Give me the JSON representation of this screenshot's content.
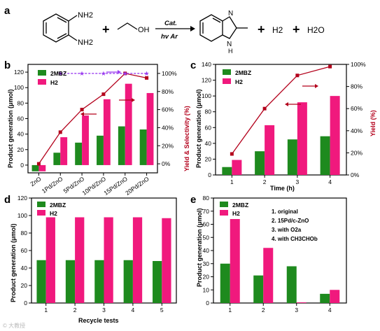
{
  "colors": {
    "green": "#1e8a1e",
    "pink": "#f0197d",
    "red": "#b3001b",
    "purple": "#9b3df0"
  },
  "scheme": {
    "label": "a",
    "reactant1_sub1": "NH2",
    "reactant1_sub2": "NH2",
    "reactant2": "OH",
    "plus": "+",
    "arrow_top": "Cat.",
    "arrow_bottom": "hv   Ar",
    "product_n": "N",
    "product_nh": "H",
    "h2": "H2",
    "h2o": "H2O"
  },
  "watermark": "© 大教授",
  "chart_data": [
    {
      "panel": "b",
      "type": "bar",
      "categories": [
        "ZnO",
        "1Pd/ZnO",
        "5Pd/ZnO",
        "10Pd/ZnO",
        "15Pd/ZnO",
        "20Pd/ZnO"
      ],
      "series": [
        {
          "name": "2MBZ",
          "values": [
            -8,
            16,
            29,
            38,
            50,
            46
          ]
        },
        {
          "name": "H2",
          "values": [
            -8,
            36,
            64,
            85,
            105,
            93
          ]
        }
      ],
      "line_series": [
        {
          "name": "Yield",
          "values": [
            0,
            35,
            60,
            77,
            100,
            95
          ]
        },
        {
          "name": "Selectivity",
          "values": [
            null,
            100,
            100,
            100,
            100,
            100
          ]
        }
      ],
      "ylabel": "Product generation (μmol)",
      "ylabel2": "Yield & Selectivity (%)",
      "ylim": [
        -10,
        130
      ],
      "y2lim": [
        -10,
        110
      ],
      "yticks": [
        0,
        20,
        40,
        60,
        80,
        100,
        120
      ],
      "y2ticks": [
        0,
        20,
        40,
        60,
        80,
        100
      ]
    },
    {
      "panel": "c",
      "type": "bar",
      "categories": [
        "1",
        "2",
        "3",
        "4"
      ],
      "series": [
        {
          "name": "2MBZ",
          "values": [
            10,
            30,
            45,
            49
          ]
        },
        {
          "name": "H2",
          "values": [
            19,
            63,
            92,
            100
          ]
        }
      ],
      "line_series": [
        {
          "name": "Yield",
          "values": [
            19,
            60,
            90,
            98
          ]
        }
      ],
      "xlabel": "Time (h)",
      "ylabel": "Product generation (μmol)",
      "ylabel2": "Yield (%)",
      "ylim": [
        0,
        140
      ],
      "y2lim": [
        0,
        100
      ],
      "yticks": [
        0,
        20,
        40,
        60,
        80,
        100,
        120,
        140
      ],
      "y2ticks": [
        0,
        20,
        40,
        60,
        80,
        100
      ]
    },
    {
      "panel": "d",
      "type": "bar",
      "categories": [
        "1",
        "2",
        "3",
        "4",
        "5"
      ],
      "series": [
        {
          "name": "2MBZ",
          "values": [
            49,
            49,
            49,
            49,
            48
          ]
        },
        {
          "name": "H2",
          "values": [
            98,
            98,
            98,
            98,
            97
          ]
        }
      ],
      "xlabel": "Recycle tests",
      "ylabel": "Product generation (μmol)",
      "ylim": [
        0,
        120
      ],
      "yticks": [
        0,
        20,
        40,
        60,
        80,
        100,
        120
      ]
    },
    {
      "panel": "e",
      "type": "bar",
      "categories": [
        "1",
        "2",
        "3",
        "4"
      ],
      "series": [
        {
          "name": "2MBZ",
          "values": [
            30,
            21,
            28,
            7
          ]
        },
        {
          "name": "H2",
          "values": [
            64,
            42,
            0.5,
            10
          ]
        }
      ],
      "ylabel": "Product generation (μmol)",
      "ylim": [
        0,
        80
      ],
      "yticks": [
        0,
        10,
        20,
        30,
        40,
        50,
        60,
        70,
        80
      ],
      "annotations": [
        "1. original",
        "2. 15Pd/c-ZnO",
        "3. with O2a",
        "4. with CH3CHOb"
      ]
    }
  ]
}
